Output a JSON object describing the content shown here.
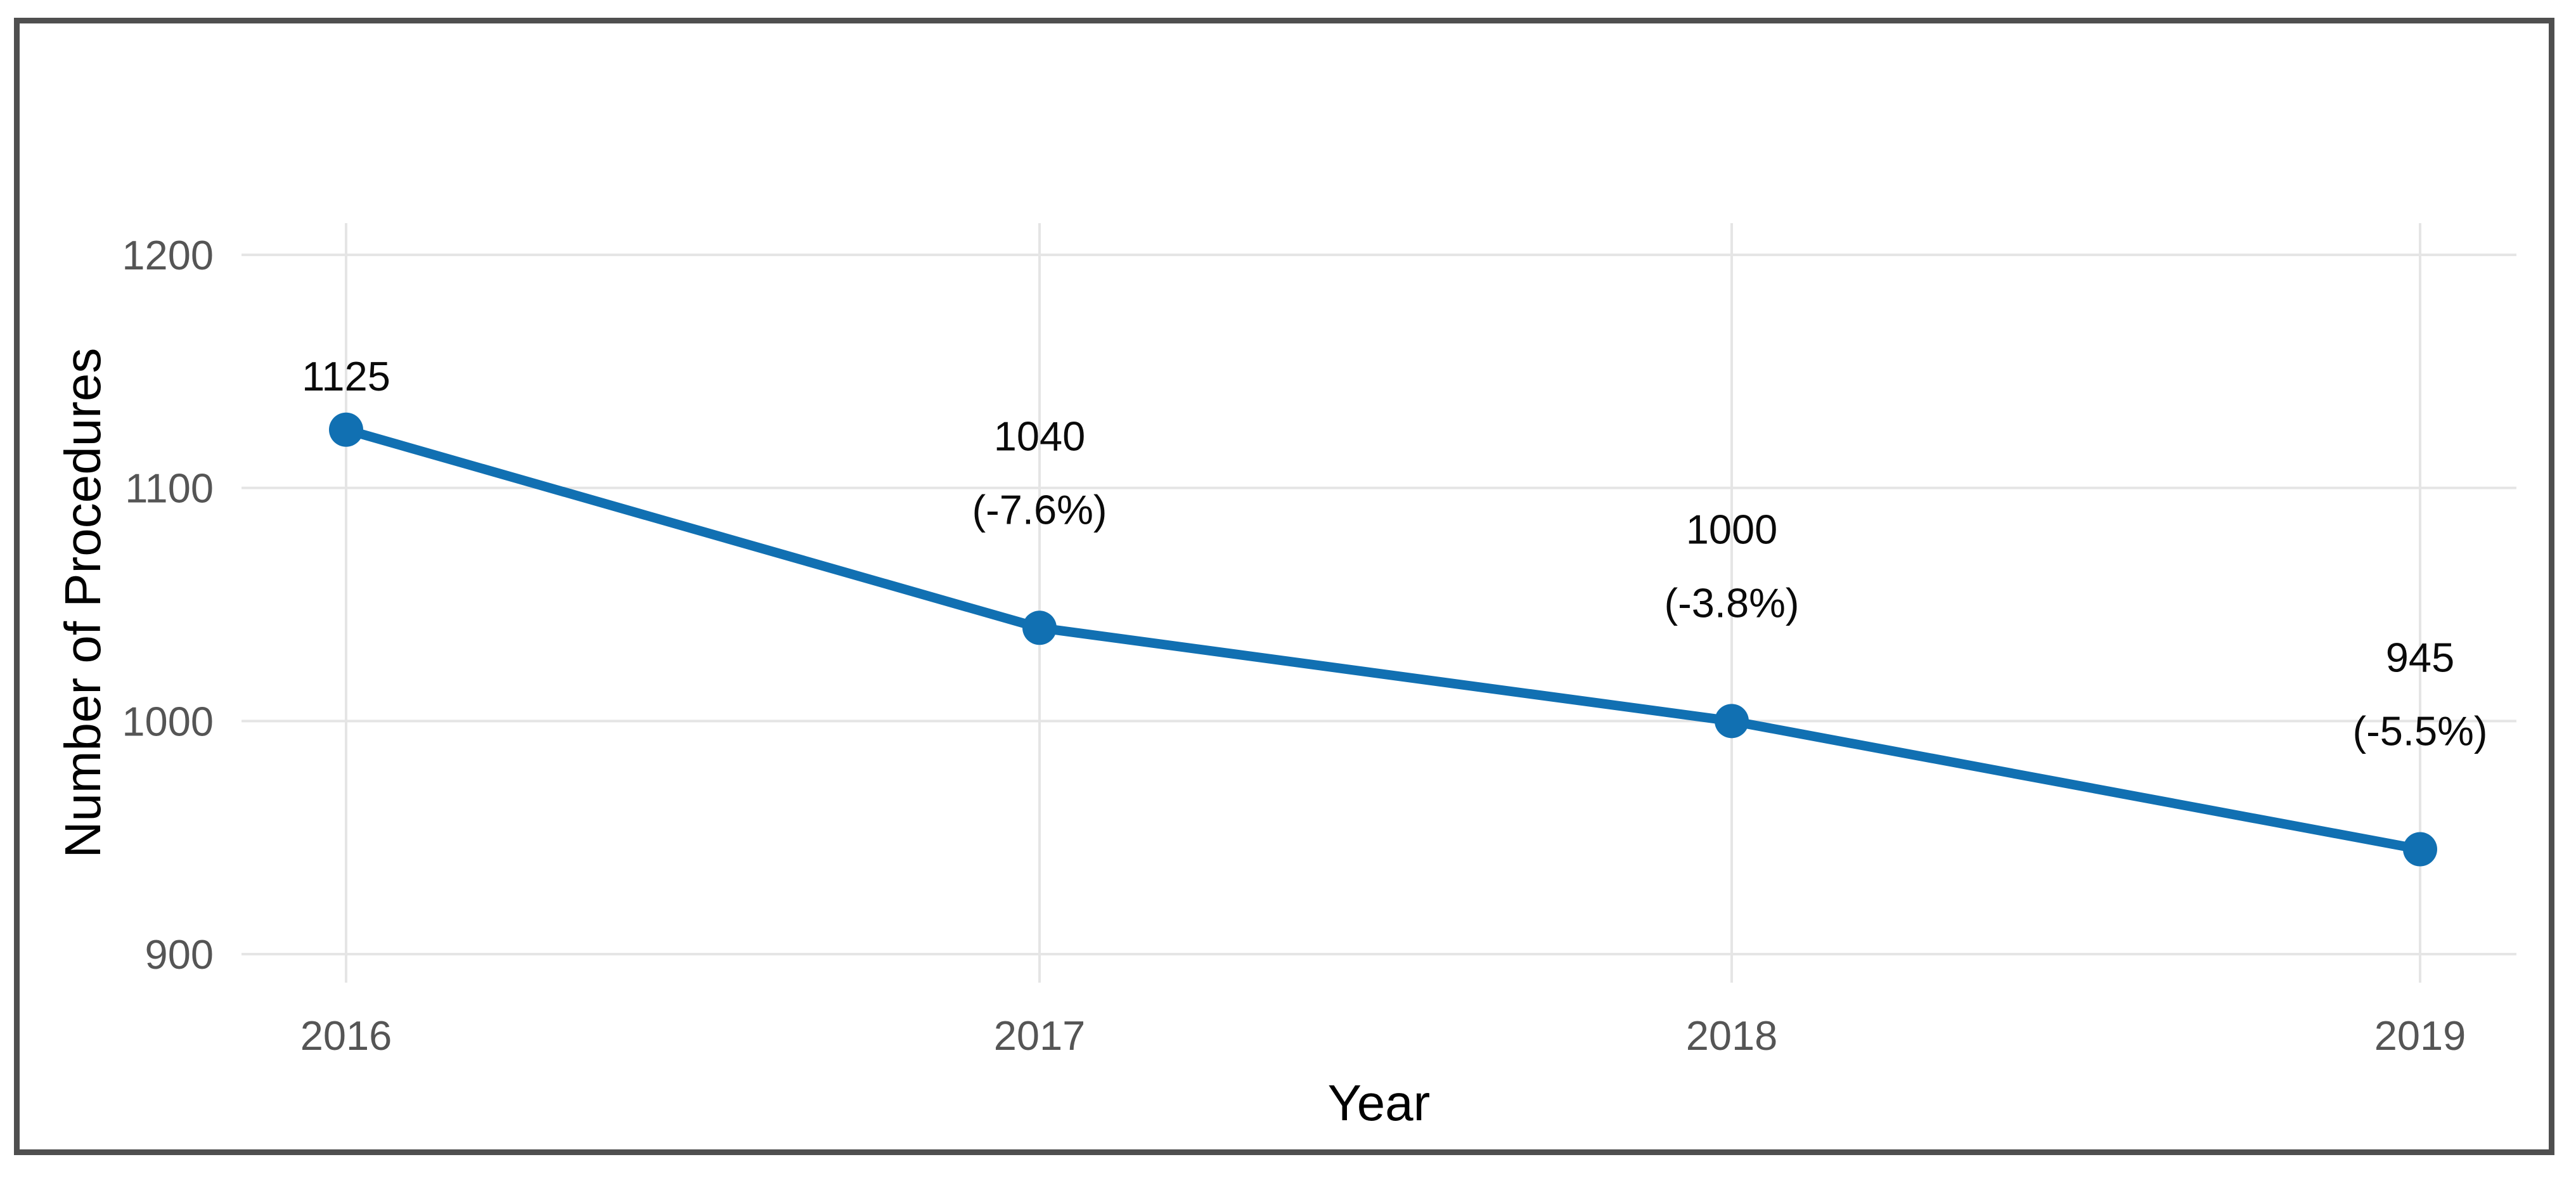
{
  "chart_data": {
    "type": "line",
    "title": "",
    "xlabel": "Year",
    "ylabel": "Number of Procedures",
    "categories": [
      "2016",
      "2017",
      "2018",
      "2019"
    ],
    "values": [
      1125,
      1040,
      1000,
      945
    ],
    "series": [
      {
        "name": "Number of Procedures",
        "values": [
          1125,
          1040,
          1000,
          945
        ]
      }
    ],
    "point_labels": [
      [
        "1125"
      ],
      [
        "1040",
        "(-7.6%)"
      ],
      [
        "1000",
        "(-3.8%)"
      ],
      [
        "945",
        "(-5.5%)"
      ]
    ],
    "pct_change_labels": [
      "",
      "(-7.6%)",
      "(-3.8%)",
      "(-5.5%)"
    ],
    "y_ticks": [
      1200,
      1100,
      1000,
      900
    ],
    "x_ticks": [
      "2016",
      "2017",
      "2018",
      "2019"
    ],
    "ylim": [
      900,
      1200
    ],
    "grid": "major",
    "legend": "none",
    "colors": {
      "line": "#1170b2",
      "point": "#1170b2",
      "grid": "#e5e5e5",
      "tick_label": "#555555",
      "axis_title": "#000000",
      "data_label": "#0a0a0a",
      "border": "#4f4f4f",
      "background": "#ffffff"
    }
  }
}
